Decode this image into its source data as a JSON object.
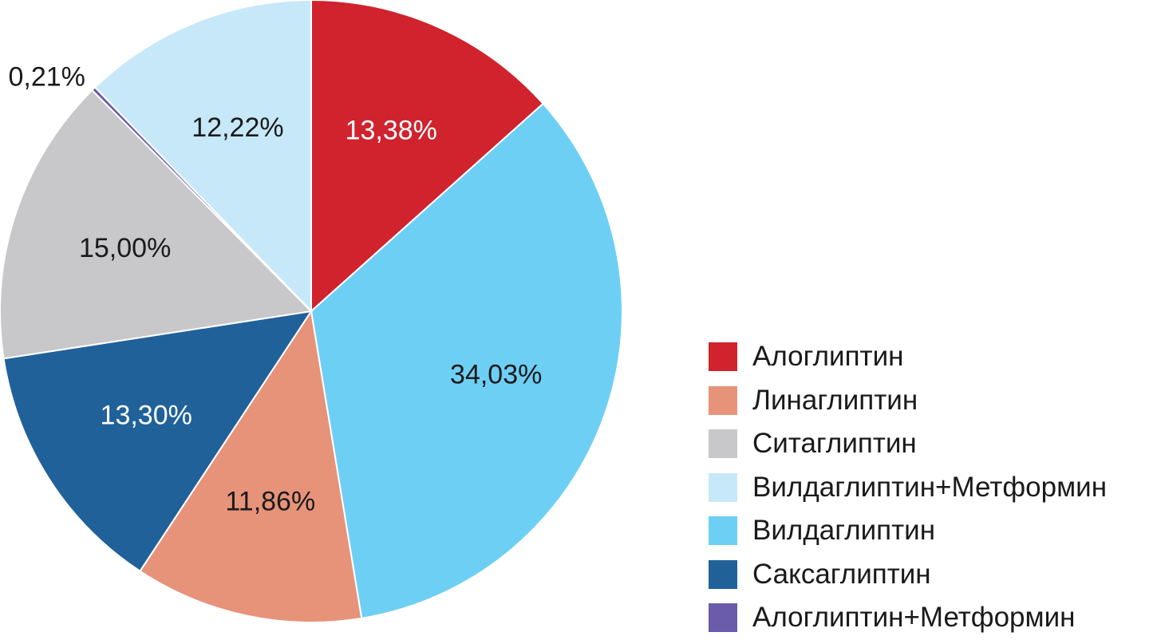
{
  "chart_data": {
    "type": "pie",
    "title": "",
    "start_angle_deg": 0,
    "direction": "clockwise",
    "slices": [
      {
        "label": "Алоглиптин",
        "value": 13.38,
        "value_label": "13,38%",
        "color": "#d0232d",
        "text_color": "#ffffff"
      },
      {
        "label": "Вилдаглиптин",
        "value": 34.03,
        "value_label": "34,03%",
        "color": "#6ecff5",
        "text_color": "#1a1a1a"
      },
      {
        "label": "Линаглиптин",
        "value": 11.86,
        "value_label": "11,86%",
        "color": "#e6937a",
        "text_color": "#1a1a1a"
      },
      {
        "label": "Саксаглиптин",
        "value": 13.3,
        "value_label": "13,30%",
        "color": "#20619a",
        "text_color": "#ffffff"
      },
      {
        "label": "Ситаглиптин",
        "value": 15.0,
        "value_label": "15,00%",
        "color": "#c8c8ca",
        "text_color": "#1a1a1a"
      },
      {
        "label": "Алоглиптин+Метформин",
        "value": 0.21,
        "value_label": "0,21%",
        "color": "#6a5bab",
        "text_color": "#1a1a1a",
        "label_outside": true
      },
      {
        "label": "Вилдаглиптин+Метформин",
        "value": 12.22,
        "value_label": "12,22%",
        "color": "#c7e8f8",
        "text_color": "#1a1a1a"
      }
    ],
    "legend": {
      "position": "right",
      "items": [
        {
          "label": "Алоглиптин",
          "color": "#d0232d"
        },
        {
          "label": "Линаглиптин",
          "color": "#e6937a"
        },
        {
          "label": "Ситаглиптин",
          "color": "#c8c8ca"
        },
        {
          "label": "Вилдаглиптин+Метформин",
          "color": "#c7e8f8"
        },
        {
          "label": "Вилдаглиптин",
          "color": "#6ecff5"
        },
        {
          "label": "Саксаглиптин",
          "color": "#20619a"
        },
        {
          "label": "Алоглиптин+Метформин",
          "color": "#6a5bab"
        }
      ]
    }
  }
}
